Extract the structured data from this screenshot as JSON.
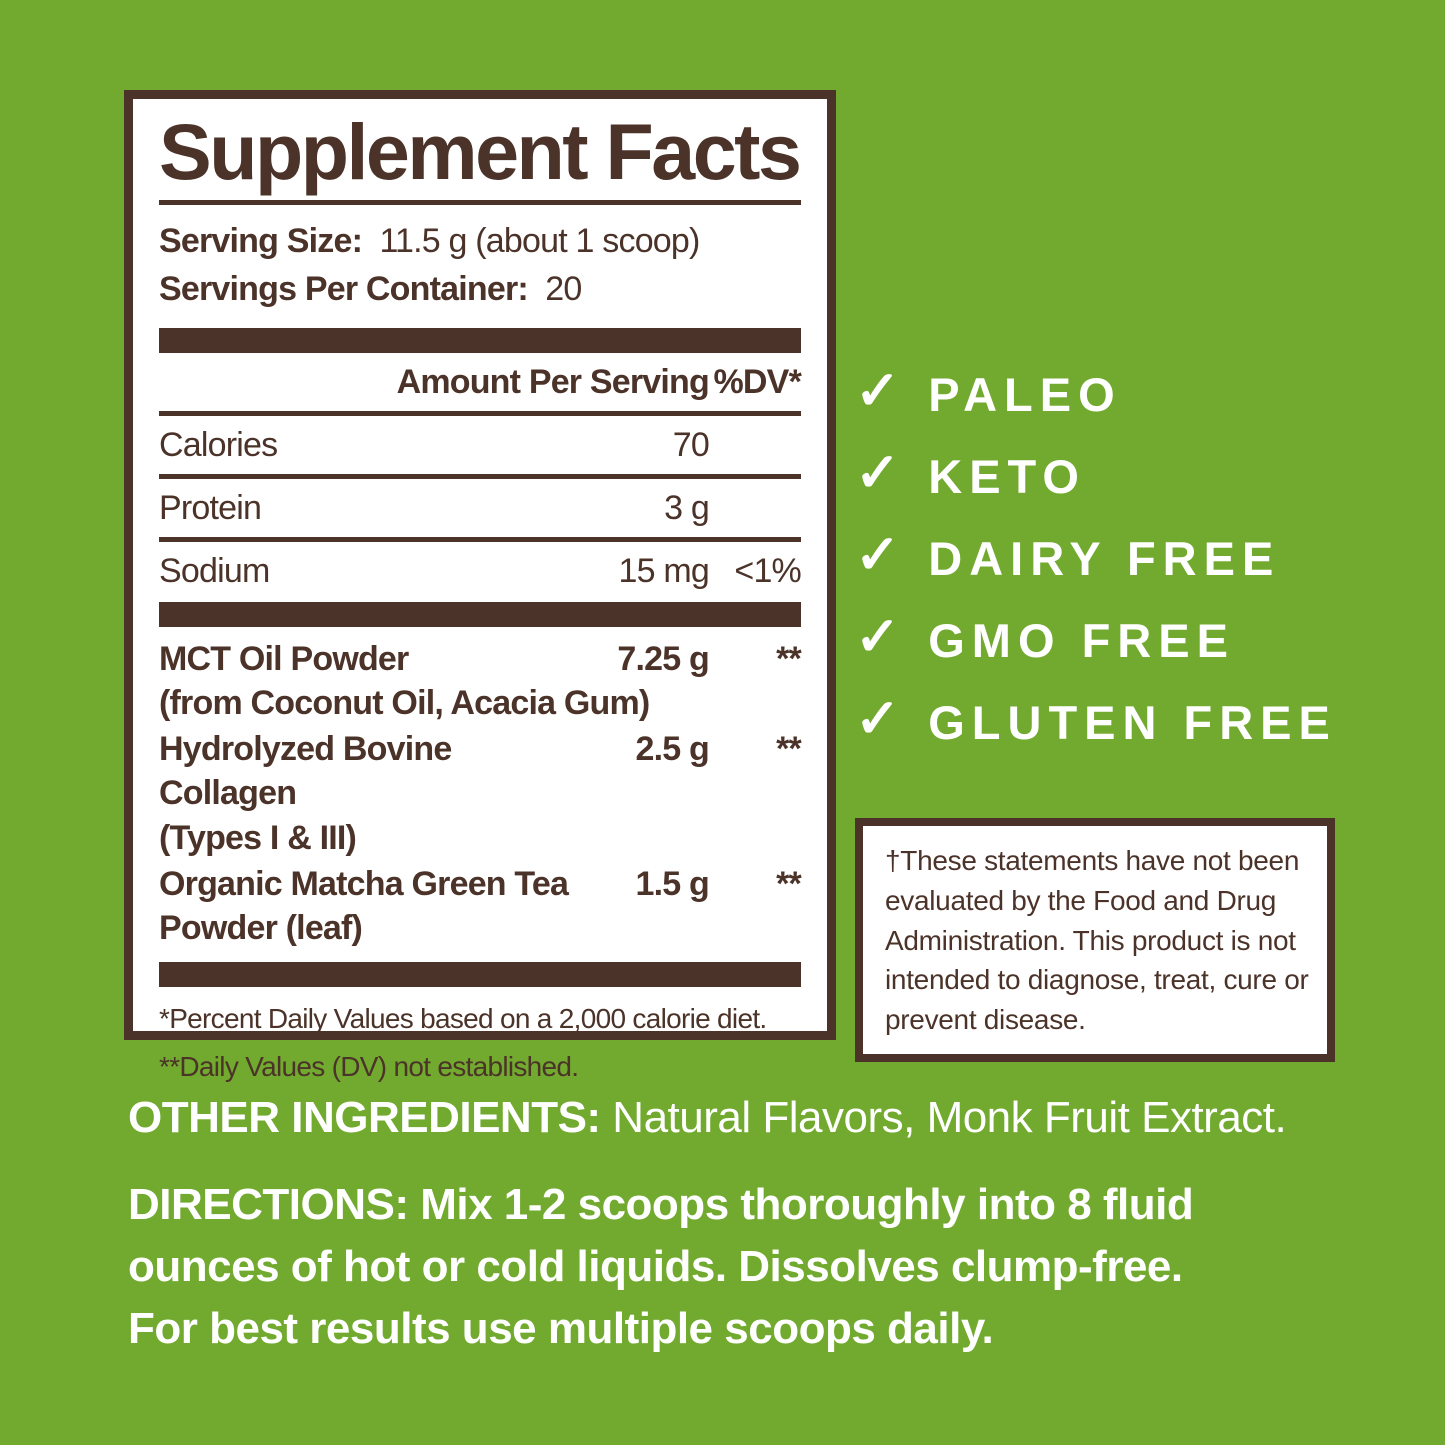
{
  "colors": {
    "background_green": "#71AA2E",
    "label_brown": "#4B3329",
    "panel_white": "#FFFFFF"
  },
  "panel": {
    "title": "Supplement Facts",
    "serving_size_label": "Serving Size:",
    "serving_size_value": "11.5 g (about 1 scoop)",
    "servings_per_container_label": "Servings Per Container:",
    "servings_per_container_value": "20",
    "column_header_amount": "Amount Per Serving",
    "column_header_dv": "%DV*",
    "nutrients": [
      {
        "name": "Calories",
        "amount": "70",
        "dv": ""
      },
      {
        "name": "Protein",
        "amount": "3 g",
        "dv": ""
      },
      {
        "name": "Sodium",
        "amount": "15 mg",
        "dv": "<1%"
      }
    ],
    "ingredients": [
      {
        "name": "MCT Oil Powder",
        "continuation": "(from Coconut Oil, Acacia Gum)",
        "amount": "7.25 g",
        "dv": "**"
      },
      {
        "name": "Hydrolyzed Bovine Collagen",
        "continuation": "(Types I & III)",
        "amount": "2.5 g",
        "dv": "**"
      },
      {
        "name": "Organic Matcha Green Tea",
        "continuation": "Powder (leaf)",
        "amount": "1.5 g",
        "dv": "**"
      }
    ],
    "footnote_1": "*Percent Daily Values based on a 2,000 calorie diet.",
    "footnote_2": "**Daily Values (DV) not established."
  },
  "badges": {
    "checkmark": "✓",
    "items": [
      {
        "label": "PALEO"
      },
      {
        "label": "KETO"
      },
      {
        "label": "DAIRY FREE"
      },
      {
        "label": "GMO FREE"
      },
      {
        "label": "GLUTEN FREE"
      }
    ]
  },
  "disclaimer": "†These statements have not been evaluated by the Food and Drug Administration. This product is not intended to diagnose, treat, cure or prevent disease.",
  "other_ingredients": {
    "label": "OTHER INGREDIENTS:",
    "value": " Natural Flavors, Monk Fruit Extract."
  },
  "directions": {
    "lines": [
      "DIRECTIONS: Mix 1-2 scoops thoroughly into 8 fluid",
      "ounces of hot or cold liquids. Dissolves clump-free.",
      "For best results use multiple scoops daily."
    ]
  }
}
